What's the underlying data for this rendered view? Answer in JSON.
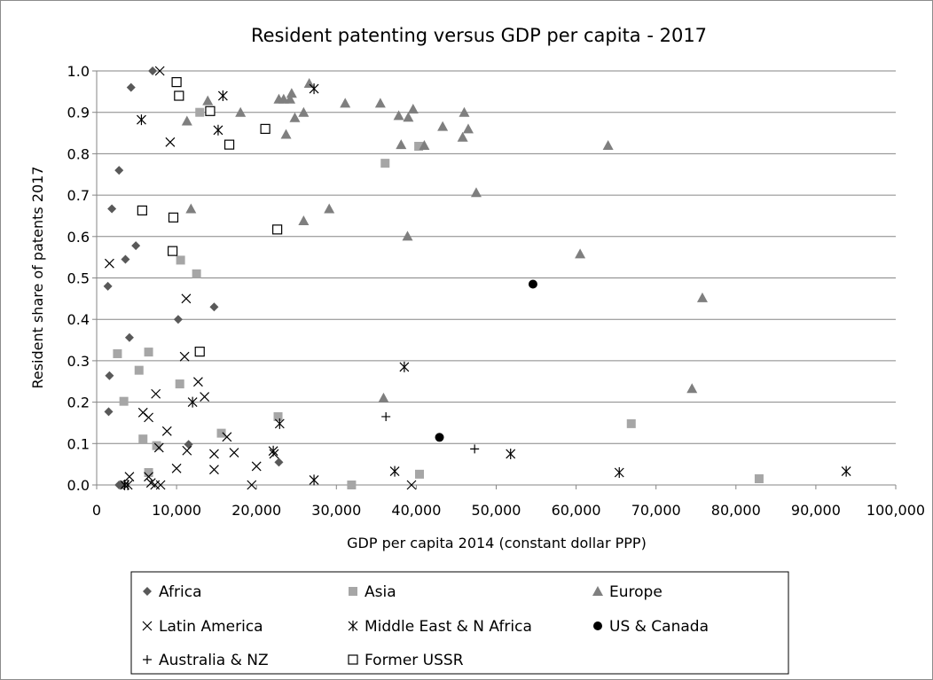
{
  "chart_data": {
    "type": "scatter",
    "title": "Resident patenting versus GDP per capita - 2017",
    "xlabel": "GDP per capita 2014 (constant dollar PPP)",
    "ylabel": "Resident share of patents 2017",
    "xlim": [
      0,
      100000
    ],
    "ylim": [
      0,
      1.0
    ],
    "x_ticks": [
      "0",
      "10,000",
      "20,000",
      "30,000",
      "40,000",
      "50,000",
      "60,000",
      "70,000",
      "80,000",
      "90,000",
      "100,000"
    ],
    "y_ticks": [
      "0.0",
      "0.1",
      "0.2",
      "0.3",
      "0.4",
      "0.5",
      "0.6",
      "0.7",
      "0.8",
      "0.9",
      "1.0"
    ],
    "grid": "horizontal",
    "legend_position": "bottom",
    "series": [
      {
        "name": "Africa",
        "marker": "diamond",
        "color": "#595959",
        "points": [
          [
            7000,
            1.0
          ],
          [
            4300,
            0.96
          ],
          [
            2800,
            0.76
          ],
          [
            1900,
            0.667
          ],
          [
            4900,
            0.578
          ],
          [
            3600,
            0.545
          ],
          [
            1400,
            0.48
          ],
          [
            14700,
            0.43
          ],
          [
            10200,
            0.4
          ],
          [
            4100,
            0.356
          ],
          [
            1600,
            0.264
          ],
          [
            1500,
            0.177
          ],
          [
            11500,
            0.098
          ],
          [
            22800,
            0.055
          ],
          [
            2800,
            0.0
          ],
          [
            3200,
            0.0
          ]
        ]
      },
      {
        "name": "Asia",
        "marker": "square",
        "color": "#a6a6a6",
        "points": [
          [
            12900,
            0.9
          ],
          [
            36100,
            0.777
          ],
          [
            40300,
            0.818
          ],
          [
            10500,
            0.543
          ],
          [
            12500,
            0.51
          ],
          [
            2600,
            0.317
          ],
          [
            6500,
            0.321
          ],
          [
            5300,
            0.277
          ],
          [
            3400,
            0.202
          ],
          [
            10400,
            0.244
          ],
          [
            22700,
            0.165
          ],
          [
            15600,
            0.125
          ],
          [
            5800,
            0.111
          ],
          [
            7500,
            0.095
          ],
          [
            66900,
            0.148
          ],
          [
            6500,
            0.03
          ],
          [
            40400,
            0.026
          ],
          [
            31900,
            0.0
          ],
          [
            82900,
            0.015
          ]
        ]
      },
      {
        "name": "Europe",
        "marker": "triangle",
        "color": "#7f7f7f",
        "points": [
          [
            26600,
            0.97
          ],
          [
            24400,
            0.946
          ],
          [
            22800,
            0.932
          ],
          [
            23400,
            0.932
          ],
          [
            24200,
            0.932
          ],
          [
            13900,
            0.928
          ],
          [
            18000,
            0.9
          ],
          [
            25900,
            0.9
          ],
          [
            24800,
            0.887
          ],
          [
            11300,
            0.879
          ],
          [
            31100,
            0.922
          ],
          [
            35500,
            0.922
          ],
          [
            37800,
            0.892
          ],
          [
            39000,
            0.888
          ],
          [
            39600,
            0.908
          ],
          [
            43300,
            0.866
          ],
          [
            46000,
            0.9
          ],
          [
            46500,
            0.86
          ],
          [
            45800,
            0.84
          ],
          [
            23700,
            0.847
          ],
          [
            38100,
            0.822
          ],
          [
            41000,
            0.82
          ],
          [
            64000,
            0.82
          ],
          [
            47500,
            0.706
          ],
          [
            11800,
            0.667
          ],
          [
            29100,
            0.667
          ],
          [
            25900,
            0.638
          ],
          [
            38900,
            0.601
          ],
          [
            60500,
            0.558
          ],
          [
            75800,
            0.452
          ],
          [
            74500,
            0.233
          ],
          [
            35900,
            0.21
          ]
        ]
      },
      {
        "name": "Latin America",
        "marker": "x",
        "color": "#000000",
        "points": [
          [
            7900,
            1.0
          ],
          [
            9200,
            0.828
          ],
          [
            1600,
            0.535
          ],
          [
            11200,
            0.45
          ],
          [
            11000,
            0.31
          ],
          [
            12700,
            0.249
          ],
          [
            7400,
            0.22
          ],
          [
            13500,
            0.213
          ],
          [
            5800,
            0.175
          ],
          [
            6500,
            0.163
          ],
          [
            16300,
            0.116
          ],
          [
            8800,
            0.13
          ],
          [
            7800,
            0.09
          ],
          [
            17200,
            0.078
          ],
          [
            11300,
            0.083
          ],
          [
            14700,
            0.075
          ],
          [
            10000,
            0.04
          ],
          [
            14700,
            0.037
          ],
          [
            20000,
            0.045
          ],
          [
            22200,
            0.075
          ],
          [
            6500,
            0.02
          ],
          [
            4100,
            0.02
          ],
          [
            7300,
            0.0
          ],
          [
            8000,
            0.0
          ],
          [
            6800,
            0.005
          ],
          [
            19400,
            0.0
          ],
          [
            39400,
            0.0
          ]
        ]
      },
      {
        "name": "Middle East & N Africa",
        "marker": "asterisk",
        "color": "#000000",
        "points": [
          [
            27200,
            0.957
          ],
          [
            15800,
            0.94
          ],
          [
            5600,
            0.882
          ],
          [
            15200,
            0.857
          ],
          [
            38500,
            0.285
          ],
          [
            12000,
            0.2
          ],
          [
            22900,
            0.148
          ],
          [
            22100,
            0.082
          ],
          [
            51800,
            0.075
          ],
          [
            37300,
            0.033
          ],
          [
            65400,
            0.03
          ],
          [
            93800,
            0.033
          ],
          [
            27200,
            0.012
          ],
          [
            3500,
            0.0
          ],
          [
            3900,
            0.0
          ]
        ]
      },
      {
        "name": "US & Canada",
        "marker": "circle",
        "color": "#000000",
        "points": [
          [
            54600,
            0.485
          ],
          [
            42900,
            0.115
          ]
        ]
      },
      {
        "name": "Australia & NZ",
        "marker": "plus",
        "color": "#000000",
        "points": [
          [
            36200,
            0.165
          ],
          [
            47300,
            0.087
          ]
        ]
      },
      {
        "name": "Former USSR",
        "marker": "open-square",
        "color": "#000000",
        "points": [
          [
            10000,
            0.973
          ],
          [
            10300,
            0.94
          ],
          [
            14200,
            0.903
          ],
          [
            16600,
            0.822
          ],
          [
            21100,
            0.86
          ],
          [
            5700,
            0.663
          ],
          [
            9600,
            0.646
          ],
          [
            22600,
            0.617
          ],
          [
            9500,
            0.565
          ],
          [
            12900,
            0.322
          ]
        ]
      }
    ]
  }
}
